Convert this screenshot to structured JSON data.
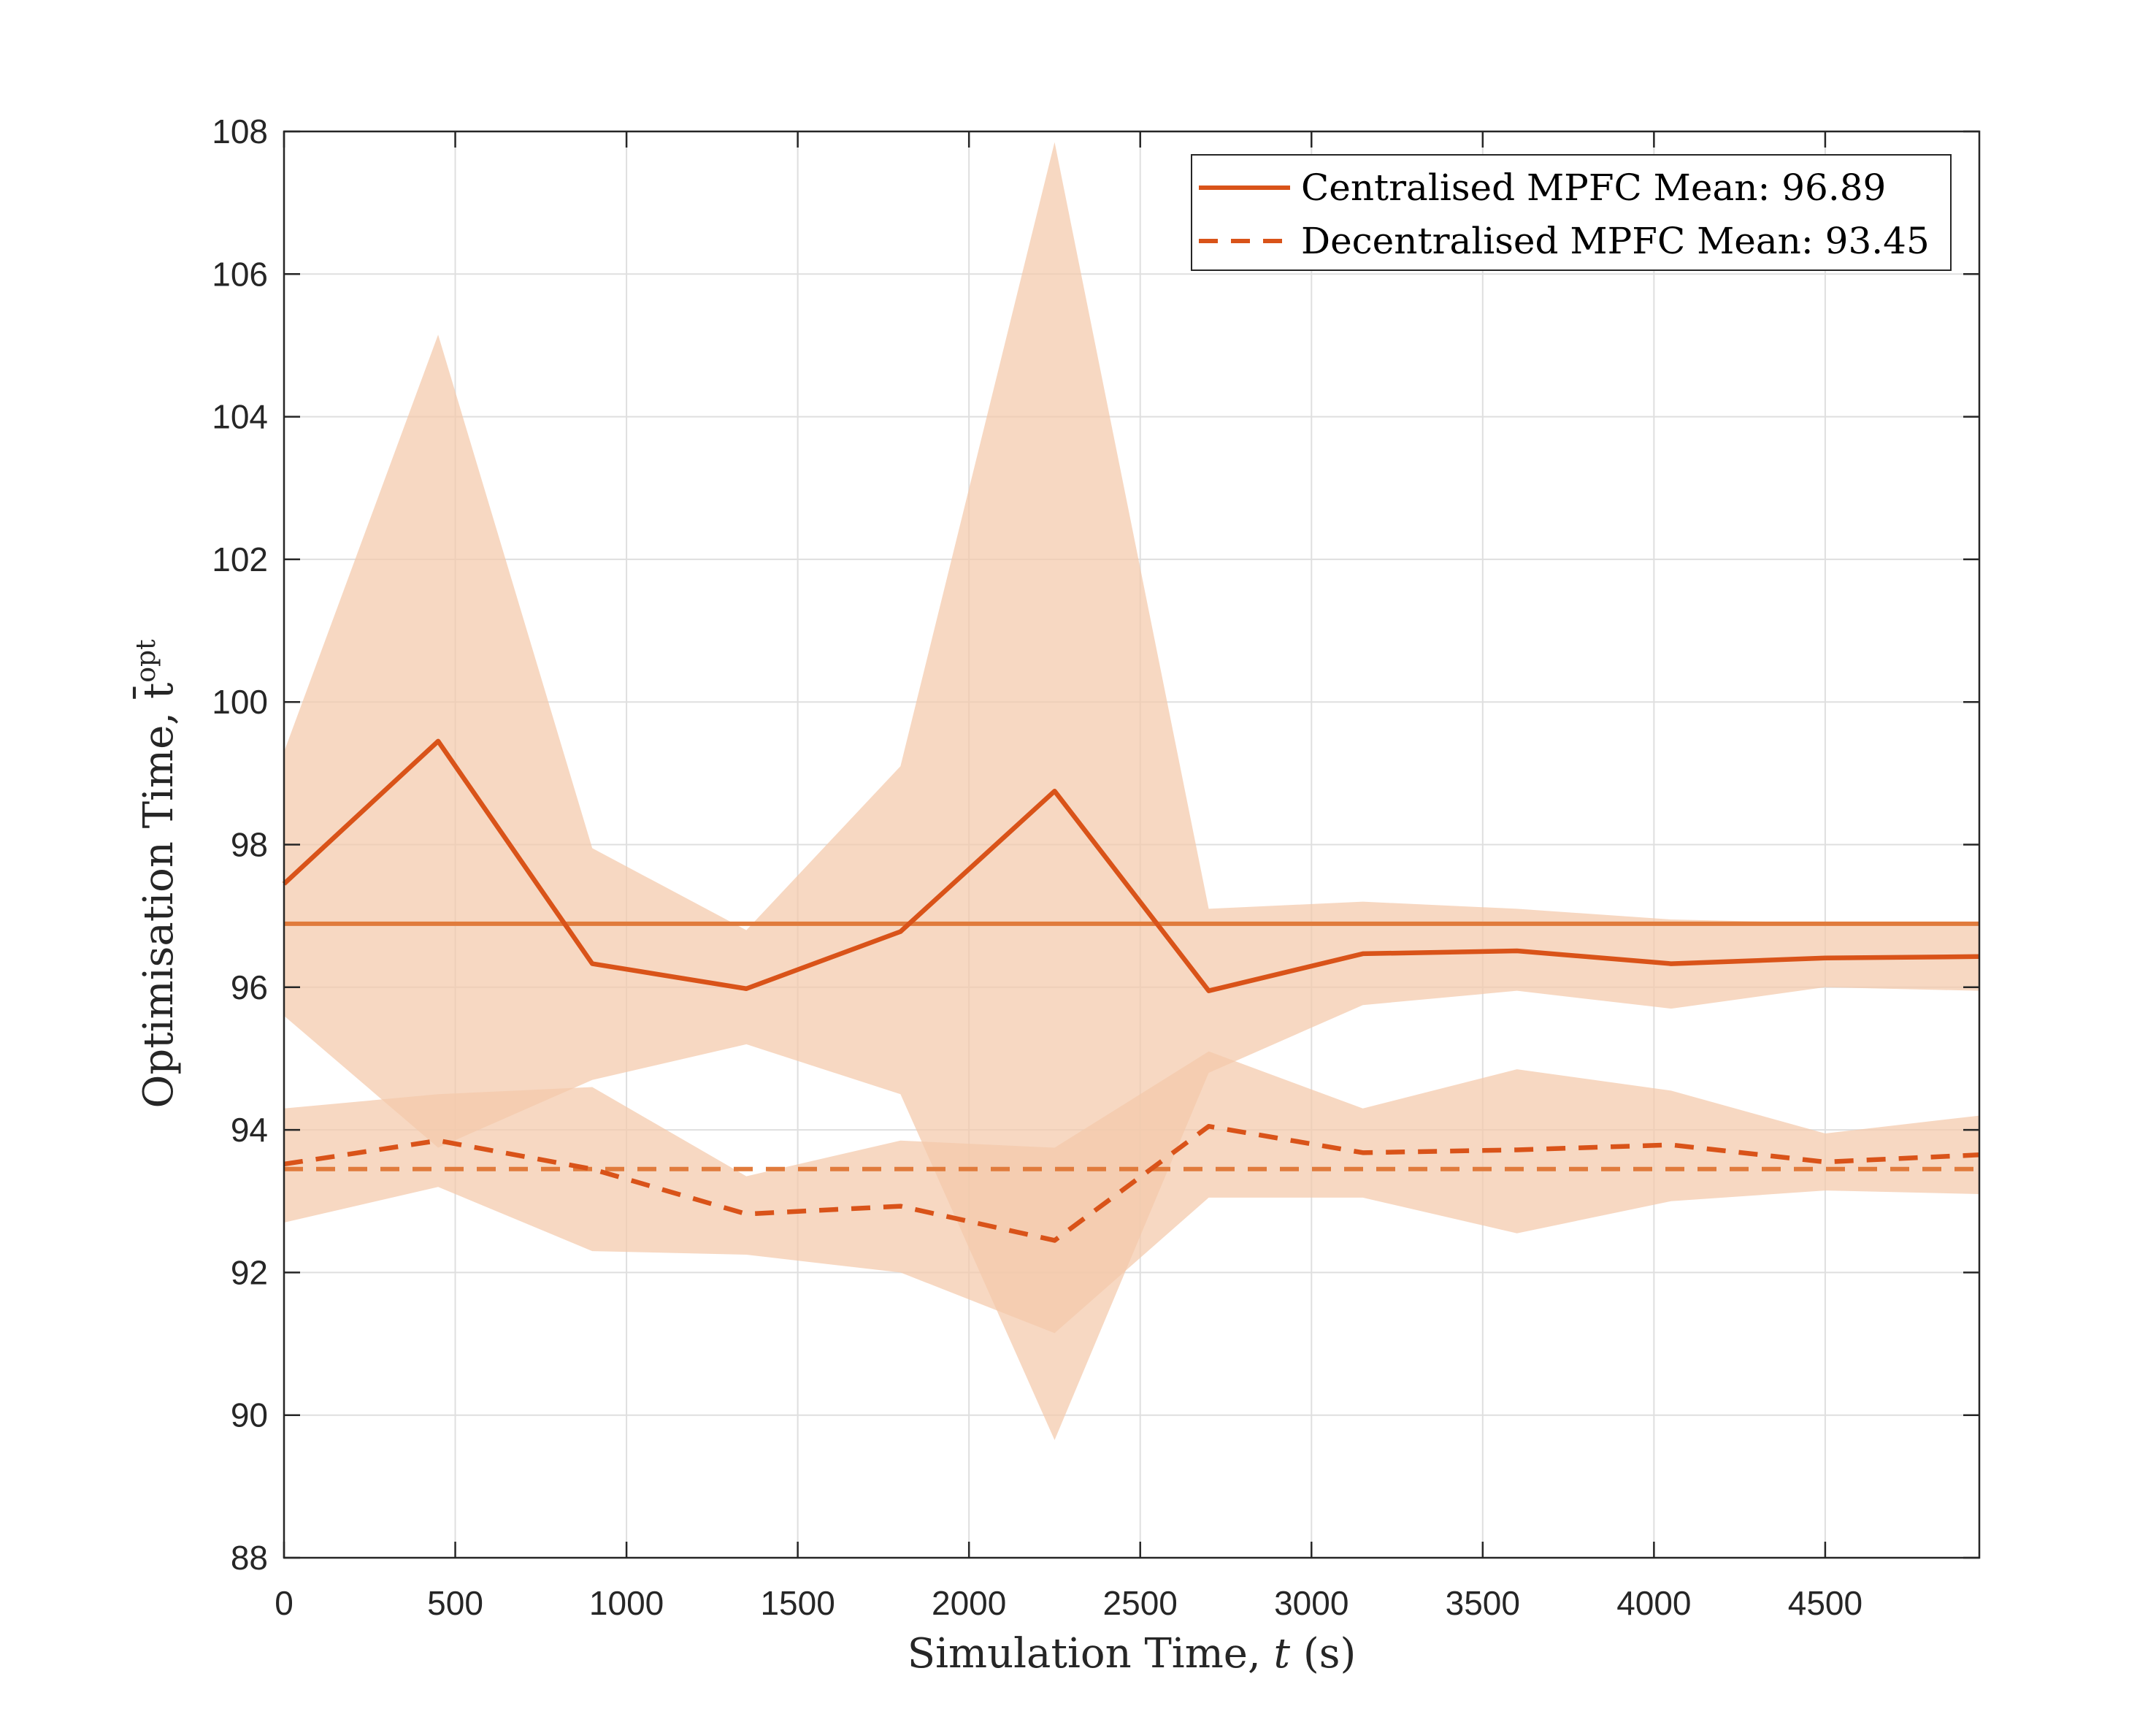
{
  "chart_data": {
    "type": "line",
    "xlabel": "Simulation Time, t (s)",
    "ylabel": "Optimisation Time, t̄",
    "ylabel_sup": "opt",
    "xlim": [
      0,
      4950
    ],
    "ylim": [
      88,
      108
    ],
    "xticks": [
      "0",
      "500",
      "1000",
      "1500",
      "2000",
      "2500",
      "3000",
      "3500",
      "4000",
      "4500"
    ],
    "yticks": [
      "88",
      "90",
      "92",
      "94",
      "96",
      "98",
      "100",
      "102",
      "104",
      "106",
      "108"
    ],
    "grid": true,
    "legend_position": "top-right",
    "x": [
      0,
      450,
      900,
      1350,
      1800,
      2250,
      2700,
      3150,
      3600,
      4050,
      4500,
      4950
    ],
    "series": [
      {
        "name": "Centralised MPFC Mean: 96.89",
        "style": "solid",
        "color": "#D95319",
        "values": [
          97.45,
          99.45,
          96.33,
          95.98,
          96.78,
          98.75,
          95.95,
          96.47,
          96.51,
          96.33,
          96.41,
          96.43
        ],
        "band_upper": [
          99.3,
          105.15,
          97.95,
          96.8,
          99.1,
          107.85,
          97.1,
          97.2,
          97.1,
          96.95,
          96.9,
          96.9
        ],
        "band_lower": [
          95.6,
          93.75,
          94.7,
          95.2,
          94.5,
          89.65,
          94.8,
          95.75,
          95.95,
          95.7,
          96.0,
          95.95
        ],
        "mean": 96.89
      },
      {
        "name": "Decentralised MPFC Mean: 93.45",
        "style": "dashed",
        "color": "#D95319",
        "values": [
          93.52,
          93.85,
          93.45,
          92.82,
          92.93,
          92.45,
          94.05,
          93.68,
          93.72,
          93.79,
          93.55,
          93.65
        ],
        "band_upper": [
          94.3,
          94.5,
          94.6,
          93.35,
          93.85,
          93.75,
          95.1,
          94.3,
          94.85,
          94.55,
          93.95,
          94.2
        ],
        "band_lower": [
          92.7,
          93.2,
          92.3,
          92.25,
          92.0,
          91.15,
          93.05,
          93.05,
          92.55,
          93.0,
          93.15,
          93.1
        ],
        "mean": 93.45
      }
    ],
    "colors": {
      "line": "#D95319",
      "mean_line": "#E07B3C",
      "band": "#F4C9AB",
      "grid": "#DFDFDF",
      "axis": "#262626"
    }
  }
}
